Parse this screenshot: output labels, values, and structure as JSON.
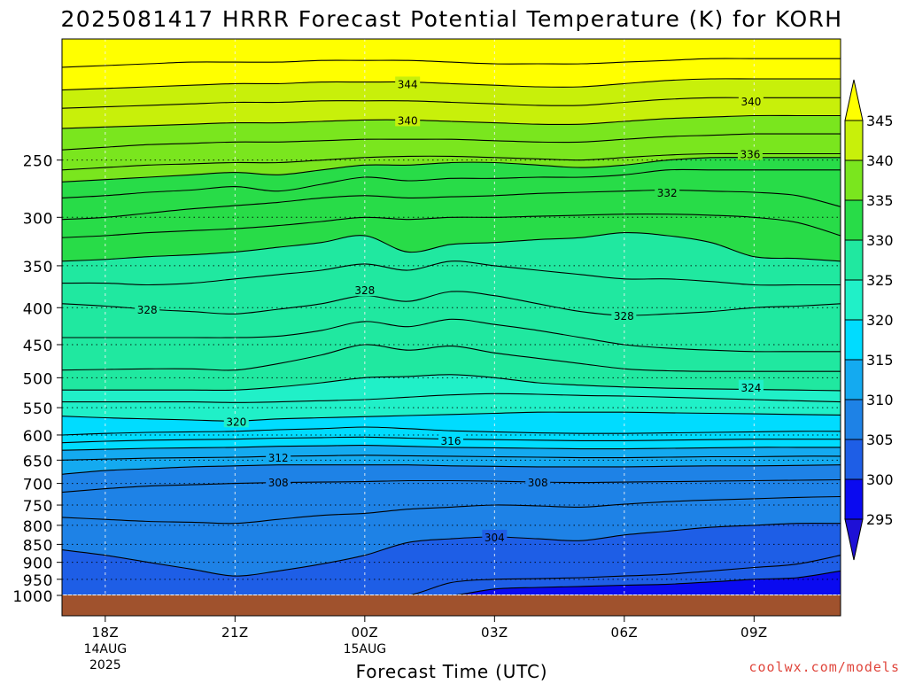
{
  "chart_data": {
    "type": "heatmap",
    "title": "2025081417 HRRR Forecast Potential Temperature (K) for KORH",
    "xlabel": "Forecast Time (UTC)",
    "ylabel": "",
    "y_scale": "log",
    "y_inverted": true,
    "ylim": [
      1000,
      170
    ],
    "xlim": [
      17,
      35
    ],
    "x_ticks": [
      {
        "x": 18,
        "label": "18Z",
        "sub1": "14AUG",
        "sub2": "2025"
      },
      {
        "x": 21,
        "label": "21Z",
        "sub1": "",
        "sub2": ""
      },
      {
        "x": 24,
        "label": "00Z",
        "sub1": "15AUG",
        "sub2": ""
      },
      {
        "x": 27,
        "label": "03Z",
        "sub1": "",
        "sub2": ""
      },
      {
        "x": 30,
        "label": "06Z",
        "sub1": "",
        "sub2": ""
      },
      {
        "x": 33,
        "label": "09Z",
        "sub1": "",
        "sub2": ""
      }
    ],
    "y_ticks": [
      250,
      300,
      350,
      400,
      450,
      500,
      550,
      600,
      650,
      700,
      750,
      800,
      850,
      900,
      950,
      1000
    ],
    "grid": true,
    "ground_color": "#a0522d",
    "colorbar": {
      "levels": [
        295,
        300,
        305,
        310,
        315,
        320,
        325,
        330,
        335,
        340,
        345
      ],
      "colors": [
        "#1e10d6",
        "#0a0af0",
        "#1e5ee6",
        "#1e82e6",
        "#14aaf0",
        "#00dcff",
        "#20f0c8",
        "#20e8a0",
        "#28dc48",
        "#7ae61e",
        "#c8f00a",
        "#ffff00"
      ],
      "extend": "both"
    },
    "x": [
      17,
      18,
      19,
      20,
      21,
      22,
      23,
      24,
      25,
      26,
      27,
      28,
      29,
      30,
      31,
      32,
      33,
      34,
      35
    ],
    "isentropes": [
      {
        "theta": 300,
        "p": [
          1000,
          1000,
          1000,
          1000,
          1000,
          1000,
          1000,
          1000,
          1000,
          1000,
          980,
          975,
          972,
          968,
          965,
          958,
          950,
          945,
          925
        ]
      },
      {
        "theta": 302,
        "p": [
          1000,
          1000,
          1000,
          1000,
          1000,
          1000,
          1000,
          1000,
          1000,
          960,
          950,
          948,
          945,
          940,
          935,
          925,
          915,
          905,
          880
        ]
      },
      {
        "theta": 304,
        "p": [
          865,
          880,
          900,
          920,
          940,
          925,
          905,
          880,
          845,
          835,
          830,
          835,
          840,
          825,
          815,
          805,
          800,
          795,
          795
        ]
      },
      {
        "theta": 306,
        "p": [
          780,
          785,
          790,
          792,
          795,
          785,
          775,
          770,
          760,
          755,
          750,
          752,
          755,
          748,
          742,
          738,
          735,
          732,
          730
        ]
      },
      {
        "theta": 308,
        "p": [
          720,
          712,
          706,
          703,
          700,
          698,
          697,
          696,
          694,
          694,
          695,
          697,
          698,
          697,
          696,
          695,
          694,
          693,
          692
        ]
      },
      {
        "theta": 310,
        "p": [
          680,
          672,
          668,
          664,
          662,
          660,
          660,
          660,
          660,
          662,
          663,
          664,
          664,
          664,
          663,
          662,
          662,
          661,
          660
        ]
      },
      {
        "theta": 312,
        "p": [
          650,
          648,
          646,
          645,
          644,
          642,
          641,
          640,
          641,
          642,
          643,
          644,
          645,
          645,
          644,
          643,
          643,
          642,
          642
        ]
      },
      {
        "theta": 314,
        "p": [
          630,
          628,
          626,
          625,
          624,
          622,
          621,
          620,
          622,
          624,
          625,
          626,
          627,
          627,
          626,
          625,
          624,
          624,
          624
        ]
      },
      {
        "theta": 316,
        "p": [
          615,
          612,
          610,
          609,
          608,
          606,
          605,
          604,
          606,
          608,
          609,
          610,
          611,
          611,
          610,
          609,
          608,
          608,
          608
        ]
      },
      {
        "theta": 318,
        "p": [
          600,
          597,
          595,
          594,
          593,
          590,
          588,
          585,
          588,
          592,
          594,
          596,
          597,
          597,
          596,
          595,
          594,
          593,
          593
        ]
      },
      {
        "theta": 320,
        "p": [
          565,
          568,
          570,
          572,
          574,
          570,
          568,
          566,
          564,
          562,
          560,
          558,
          558,
          558,
          559,
          560,
          561,
          562,
          563
        ]
      },
      {
        "theta": 322,
        "p": [
          540,
          540,
          540,
          540,
          541,
          540,
          538,
          536,
          532,
          528,
          526,
          527,
          529,
          530,
          532,
          534,
          536,
          538,
          540
        ]
      },
      {
        "theta": 324,
        "p": [
          520,
          520,
          520,
          520,
          520,
          515,
          508,
          500,
          498,
          495,
          500,
          508,
          512,
          515,
          517,
          518,
          519,
          520,
          521
        ]
      },
      {
        "theta": 326,
        "p": [
          488,
          487,
          486,
          486,
          488,
          478,
          465,
          450,
          458,
          452,
          462,
          470,
          478,
          486,
          489,
          490,
          490,
          490,
          490
        ]
      },
      {
        "theta": 327,
        "p": [
          440,
          440,
          440,
          440,
          440,
          438,
          430,
          418,
          425,
          415,
          422,
          430,
          440,
          450,
          455,
          458,
          460,
          460,
          460
        ]
      },
      {
        "theta": 328,
        "p": [
          395,
          398,
          402,
          405,
          408,
          402,
          395,
          385,
          392,
          380,
          385,
          395,
          405,
          410,
          408,
          405,
          400,
          398,
          395
        ]
      },
      {
        "theta": 329,
        "p": [
          370,
          370,
          372,
          370,
          365,
          360,
          355,
          348,
          355,
          345,
          350,
          355,
          360,
          365,
          365,
          368,
          372,
          372,
          372
        ]
      },
      {
        "theta": 330,
        "p": [
          345,
          343,
          340,
          338,
          335,
          330,
          325,
          318,
          335,
          327,
          325,
          322,
          320,
          315,
          318,
          325,
          340,
          342,
          345
        ]
      },
      {
        "theta": 331,
        "p": [
          320,
          318,
          315,
          313,
          311,
          308,
          304,
          300,
          302,
          300,
          300,
          299,
          298,
          297,
          297,
          298,
          300,
          305,
          318
        ]
      },
      {
        "theta": 332,
        "p": [
          302,
          300,
          296,
          292,
          289,
          286,
          282,
          280,
          282,
          281,
          280,
          278,
          277,
          276,
          275,
          276,
          277,
          280,
          290
        ]
      },
      {
        "theta": 333,
        "p": [
          282,
          280,
          277,
          275,
          272,
          276,
          270,
          264,
          267,
          265,
          265,
          264,
          264,
          262,
          258,
          258,
          258,
          258,
          258
        ]
      },
      {
        "theta": 334,
        "p": [
          268,
          266,
          264,
          262,
          260,
          262,
          258,
          254,
          254,
          252,
          252,
          254,
          256,
          254,
          250,
          248,
          248,
          248,
          248
        ]
      },
      {
        "theta": 336,
        "p": [
          258,
          256,
          254,
          253,
          252,
          252,
          250,
          248,
          247,
          247,
          248,
          249,
          250,
          248,
          246,
          245,
          245,
          245,
          245
        ]
      },
      {
        "theta": 338,
        "p": [
          242,
          240,
          238,
          237,
          236,
          236,
          235,
          234,
          234,
          234,
          235,
          236,
          236,
          234,
          232,
          231,
          230,
          230,
          230
        ]
      },
      {
        "theta": 340,
        "p": [
          226,
          225,
          224,
          223,
          222,
          222,
          221,
          220,
          220,
          221,
          222,
          223,
          223,
          221,
          219,
          218,
          217,
          217,
          217
        ]
      },
      {
        "theta": 342,
        "p": [
          212,
          211,
          210,
          209,
          208,
          208,
          207,
          207,
          207,
          208,
          209,
          210,
          210,
          208,
          206,
          205,
          205,
          205,
          205
        ]
      },
      {
        "theta": 344,
        "p": [
          200,
          199,
          198,
          197,
          196,
          196,
          195,
          195,
          195,
          196,
          197,
          198,
          198,
          196,
          194,
          193,
          193,
          193,
          193
        ]
      },
      {
        "theta": 346,
        "p": [
          186,
          185,
          184,
          183,
          183,
          183,
          182,
          182,
          182,
          183,
          184,
          184,
          184,
          183,
          182,
          181,
          181,
          181,
          181
        ]
      }
    ],
    "contour_labels": [
      {
        "text": "344",
        "x": 24.99,
        "p": 196
      },
      {
        "text": "340",
        "x": 24.99,
        "p": 220
      },
      {
        "text": "340",
        "x": 32.93,
        "p": 207
      },
      {
        "text": "336",
        "x": 32.91,
        "p": 245
      },
      {
        "text": "332",
        "x": 30.99,
        "p": 277
      },
      {
        "text": "328",
        "x": 24.0,
        "p": 378
      },
      {
        "text": "328",
        "x": 18.97,
        "p": 402
      },
      {
        "text": "328",
        "x": 29.99,
        "p": 410
      },
      {
        "text": "324",
        "x": 32.93,
        "p": 515
      },
      {
        "text": "320",
        "x": 21.03,
        "p": 574
      },
      {
        "text": "316",
        "x": 25.99,
        "p": 610
      },
      {
        "text": "312",
        "x": 22.0,
        "p": 644
      },
      {
        "text": "308",
        "x": 22.0,
        "p": 697
      },
      {
        "text": "308",
        "x": 28.0,
        "p": 697
      },
      {
        "text": "304",
        "x": 27.0,
        "p": 830
      }
    ]
  },
  "footer": {
    "credit": "coolwx.com/models"
  }
}
